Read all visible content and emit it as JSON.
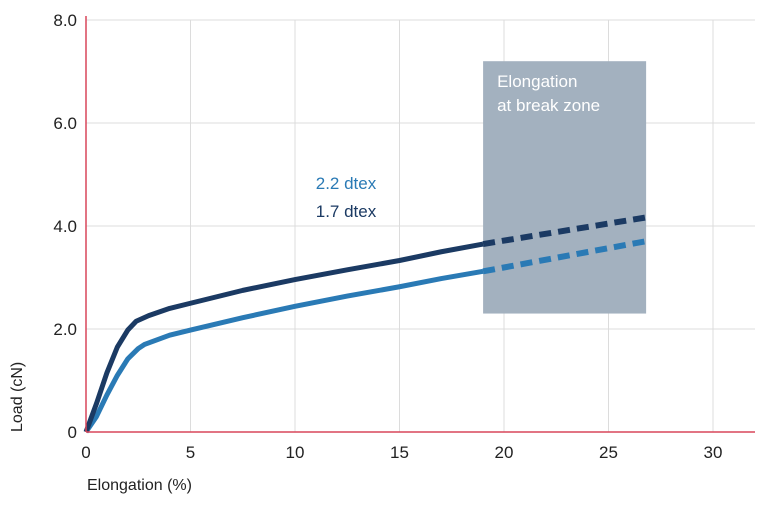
{
  "chart_data": {
    "type": "line",
    "title": "",
    "xlabel": "Elongation (%)",
    "ylabel": "Load (cN)",
    "xlim": [
      0,
      32
    ],
    "ylim": [
      0,
      8
    ],
    "xticks": [
      0,
      5,
      10,
      15,
      20,
      25,
      30
    ],
    "xtick_labels": [
      "0",
      "5",
      "10",
      "15",
      "20",
      "25",
      "30"
    ],
    "yticks": [
      0,
      2,
      4,
      6,
      8
    ],
    "ytick_labels": [
      "0",
      "2.0",
      "4.0",
      "6.0",
      "8.0"
    ],
    "grid": true,
    "zone": {
      "label_line1": "Elongation",
      "label_line2": "at break zone",
      "x_range": [
        19,
        26.8
      ],
      "y_range": [
        2.3,
        7.2
      ],
      "color": "#a3b1bf"
    },
    "series": [
      {
        "name": "2.2 dtex",
        "color": "#2a7ab5",
        "solid": [
          [
            0,
            0
          ],
          [
            0.5,
            0.3
          ],
          [
            1,
            0.72
          ],
          [
            1.5,
            1.1
          ],
          [
            2,
            1.42
          ],
          [
            2.5,
            1.62
          ],
          [
            2.8,
            1.7
          ],
          [
            4,
            1.88
          ],
          [
            5,
            1.98
          ],
          [
            7.5,
            2.22
          ],
          [
            10,
            2.44
          ],
          [
            12.5,
            2.64
          ],
          [
            15,
            2.82
          ],
          [
            17,
            2.98
          ],
          [
            19,
            3.12
          ]
        ],
        "dashed": [
          [
            19,
            3.12
          ],
          [
            27,
            3.72
          ]
        ]
      },
      {
        "name": "1.7 dtex",
        "color": "#1b3a63",
        "solid": [
          [
            0,
            0
          ],
          [
            0.5,
            0.55
          ],
          [
            1,
            1.15
          ],
          [
            1.5,
            1.65
          ],
          [
            2,
            1.98
          ],
          [
            2.4,
            2.15
          ],
          [
            3,
            2.26
          ],
          [
            4,
            2.4
          ],
          [
            5,
            2.5
          ],
          [
            7.5,
            2.75
          ],
          [
            10,
            2.96
          ],
          [
            12.5,
            3.15
          ],
          [
            15,
            3.33
          ],
          [
            17,
            3.5
          ],
          [
            19,
            3.65
          ]
        ],
        "dashed": [
          [
            19,
            3.65
          ],
          [
            27,
            4.18
          ]
        ]
      }
    ],
    "legend": [
      "2.2 dtex",
      "1.7 dtex"
    ],
    "legend_placement": "center-top"
  },
  "colors": {
    "axis": "#d9475a",
    "grid": "#dcdcdc"
  }
}
